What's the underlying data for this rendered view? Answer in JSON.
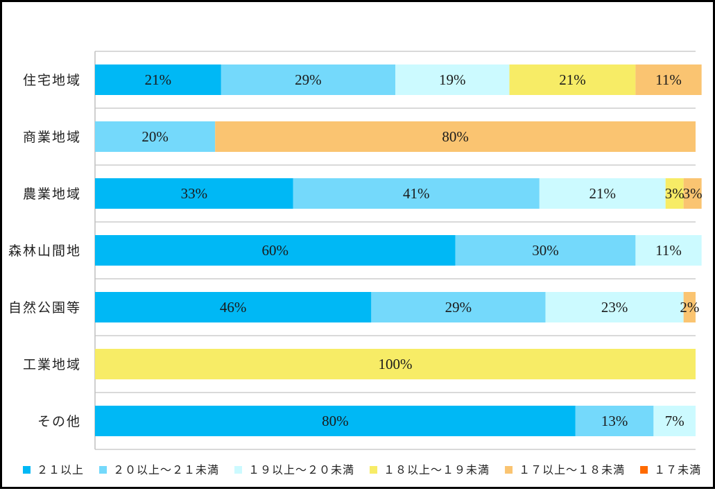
{
  "chart_data": {
    "type": "bar",
    "orientation": "horizontal",
    "stacked": "percent",
    "title": "",
    "xlabel": "",
    "ylabel": "",
    "xlim": [
      0,
      100
    ],
    "grid": true,
    "legend_position": "bottom",
    "categories": [
      "住宅地域",
      "商業地域",
      "農業地域",
      "森林山間地",
      "自然公園等",
      "工業地域",
      "その他"
    ],
    "series": [
      {
        "name": "２１以上",
        "color": "#00B8F5",
        "values": [
          21,
          0,
          33,
          60,
          46,
          0,
          80
        ]
      },
      {
        "name": "２０以上～２１未満",
        "color": "#74D9FB",
        "values": [
          29,
          20,
          41,
          30,
          29,
          0,
          13
        ]
      },
      {
        "name": "１９以上～２０未満",
        "color": "#CCFAFF",
        "values": [
          19,
          0,
          21,
          11,
          23,
          0,
          7
        ]
      },
      {
        "name": "１８以上～１９未満",
        "color": "#F7EC66",
        "values": [
          21,
          0,
          3,
          0,
          0,
          100,
          0
        ]
      },
      {
        "name": "１７以上～１８未満",
        "color": "#FAC471",
        "values": [
          11,
          80,
          3,
          0,
          2,
          0,
          0
        ]
      },
      {
        "name": "１７未満",
        "color": "#FF6A00",
        "values": [
          0,
          0,
          0,
          0,
          0,
          0,
          0
        ]
      }
    ],
    "gridline_color": "#D9D9D9",
    "axis_color": "#BFBFBF"
  }
}
